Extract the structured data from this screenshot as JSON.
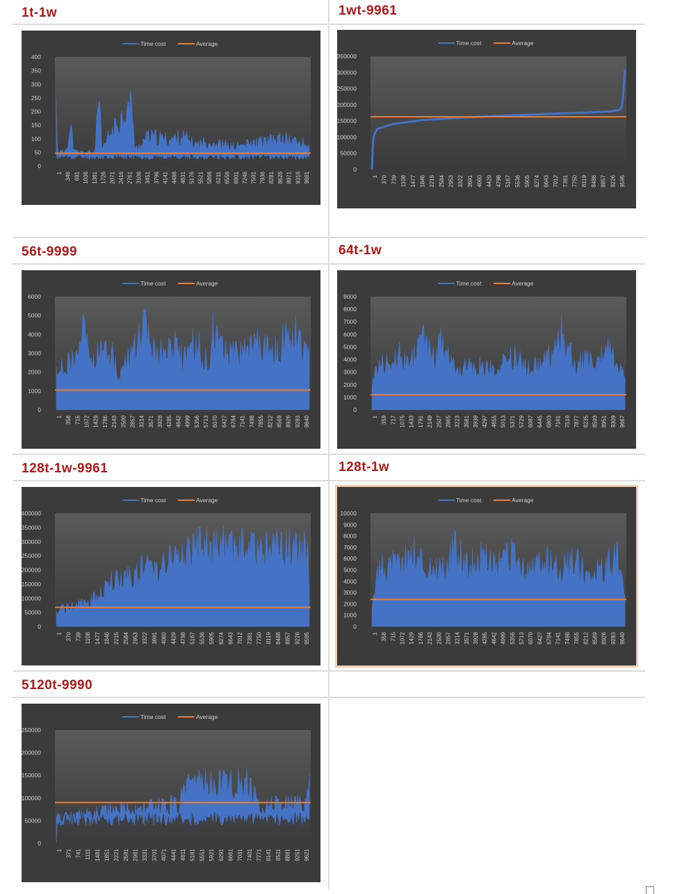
{
  "sections": [
    {
      "title": "1t-1w"
    },
    {
      "title": "1wt-9961"
    },
    {
      "title": "56t-9999"
    },
    {
      "title": "64t-1w"
    },
    {
      "title": "128t-1w-9961"
    },
    {
      "title": "128t-1w"
    },
    {
      "title": "5120t-9990"
    }
  ],
  "colors": {
    "title": "#b01818",
    "series": "#4472c4",
    "average": "#ed7d31",
    "chart_bg": "#3b3b3b",
    "plot_bg_top": "#5a5a5a",
    "plot_bg_bottom": "#3a3a3a",
    "text": "#d0d0d0"
  },
  "chart_data": [
    {
      "type": "line",
      "legend": [
        "Time cost",
        "Average"
      ],
      "legend_position": "top",
      "ylim": [
        0,
        400
      ],
      "yticks": [
        0,
        50,
        100,
        150,
        200,
        250,
        300,
        350,
        400
      ],
      "xticks": [
        "1",
        "346",
        "691",
        "1036",
        "1381",
        "1726",
        "2071",
        "2416",
        "2761",
        "3106",
        "3451",
        "3796",
        "4141",
        "4486",
        "4831",
        "5176",
        "5521",
        "5866",
        "6211",
        "6556",
        "6901",
        "7246",
        "7591",
        "7936",
        "8281",
        "8626",
        "8971",
        "9316",
        "9661"
      ],
      "average": 47,
      "series": [
        {
          "name": "Time cost",
          "profile": [
            [
              0,
              300
            ],
            [
              0.005,
              70
            ],
            [
              0.03,
              60
            ],
            [
              0.06,
              180
            ],
            [
              0.07,
              65
            ],
            [
              0.15,
              60
            ],
            [
              0.17,
              335
            ],
            [
              0.18,
              65
            ],
            [
              0.2,
              125
            ],
            [
              0.3,
              305
            ],
            [
              0.31,
              70
            ],
            [
              0.36,
              140
            ],
            [
              0.45,
              125
            ],
            [
              0.5,
              140
            ],
            [
              0.55,
              100
            ],
            [
              0.6,
              115
            ],
            [
              0.7,
              90
            ],
            [
              0.85,
              120
            ],
            [
              0.9,
              130
            ],
            [
              0.95,
              115
            ],
            [
              1,
              95
            ]
          ],
          "base": 40
        }
      ]
    },
    {
      "type": "line",
      "legend": [
        "Time cost",
        "Average"
      ],
      "legend_position": "top",
      "ylim": [
        0,
        350000
      ],
      "yticks": [
        0,
        50000,
        100000,
        150000,
        200000,
        250000,
        300000,
        350000
      ],
      "xticks": [
        "1",
        "370",
        "739",
        "1108",
        "1477",
        "1846",
        "2215",
        "2584",
        "2953",
        "3322",
        "3691",
        "4060",
        "4429",
        "4798",
        "5167",
        "5536",
        "5905",
        "6274",
        "6643",
        "7012",
        "7381",
        "7750",
        "8119",
        "8488",
        "8857",
        "9226",
        "9595"
      ],
      "average": 163000,
      "series": [
        {
          "name": "Time cost",
          "profile": [
            [
              0,
              0
            ],
            [
              0.005,
              100000
            ],
            [
              0.02,
              125000
            ],
            [
              0.08,
              140000
            ],
            [
              0.2,
              153000
            ],
            [
              0.35,
              160000
            ],
            [
              0.5,
              166000
            ],
            [
              0.7,
              172000
            ],
            [
              0.85,
              176000
            ],
            [
              0.95,
              180000
            ],
            [
              0.98,
              185000
            ],
            [
              0.99,
              200000
            ],
            [
              1,
              310000
            ]
          ],
          "base": null
        }
      ]
    },
    {
      "type": "line",
      "legend": [
        "Time cost",
        "Average"
      ],
      "legend_position": "top",
      "ylim": [
        0,
        6000
      ],
      "yticks": [
        0,
        1000,
        2000,
        3000,
        4000,
        5000,
        6000
      ],
      "xticks": [
        "1",
        "358",
        "715",
        "1072",
        "1429",
        "1786",
        "2143",
        "2500",
        "2857",
        "3214",
        "3571",
        "3928",
        "4285",
        "4642",
        "4999",
        "5356",
        "5713",
        "6070",
        "6427",
        "6784",
        "7141",
        "7498",
        "7855",
        "8212",
        "8569",
        "8926",
        "9283",
        "9640"
      ],
      "average": 1050,
      "series": [
        {
          "name": "Time cost",
          "profile": [
            [
              0,
              2800
            ],
            [
              0.08,
              3500
            ],
            [
              0.1,
              5500
            ],
            [
              0.14,
              3200
            ],
            [
              0.2,
              4500
            ],
            [
              0.25,
              2500
            ],
            [
              0.3,
              3700
            ],
            [
              0.35,
              5500
            ],
            [
              0.4,
              3600
            ],
            [
              0.47,
              4700
            ],
            [
              0.5,
              3200
            ],
            [
              0.55,
              4700
            ],
            [
              0.6,
              3000
            ],
            [
              0.62,
              5300
            ],
            [
              0.68,
              3600
            ],
            [
              0.75,
              4000
            ],
            [
              0.8,
              4700
            ],
            [
              0.85,
              3600
            ],
            [
              0.9,
              4700
            ],
            [
              0.95,
              5600
            ],
            [
              1,
              3600
            ]
          ],
          "base": 0
        }
      ]
    },
    {
      "type": "line",
      "legend": [
        "Time cost",
        "Average"
      ],
      "legend_position": "top",
      "ylim": [
        0,
        9000
      ],
      "yticks": [
        0,
        1000,
        2000,
        3000,
        4000,
        5000,
        6000,
        7000,
        8000,
        9000
      ],
      "xticks": [
        "1",
        "359",
        "717",
        "1075",
        "1433",
        "1791",
        "2149",
        "2507",
        "2865",
        "3223",
        "3581",
        "3939",
        "4297",
        "4655",
        "5013",
        "5371",
        "5729",
        "6087",
        "6445",
        "6803",
        "7161",
        "7519",
        "7877",
        "8235",
        "8593",
        "8951",
        "9309",
        "9667"
      ],
      "average": 1200,
      "series": [
        {
          "name": "Time cost",
          "profile": [
            [
              0,
              3000
            ],
            [
              0.06,
              5000
            ],
            [
              0.1,
              6000
            ],
            [
              0.15,
              4500
            ],
            [
              0.2,
              7200
            ],
            [
              0.25,
              5000
            ],
            [
              0.27,
              7200
            ],
            [
              0.33,
              4000
            ],
            [
              0.4,
              4200
            ],
            [
              0.5,
              4500
            ],
            [
              0.55,
              5600
            ],
            [
              0.6,
              4500
            ],
            [
              0.65,
              4500
            ],
            [
              0.72,
              5500
            ],
            [
              0.75,
              8000
            ],
            [
              0.8,
              4500
            ],
            [
              0.85,
              5000
            ],
            [
              0.9,
              5000
            ],
            [
              0.95,
              6200
            ],
            [
              1,
              3500
            ]
          ],
          "base": 0
        }
      ]
    },
    {
      "type": "line",
      "legend": [
        "Time cost",
        "Average"
      ],
      "legend_position": "top",
      "ylim": [
        0,
        400000
      ],
      "yticks": [
        0,
        50000,
        100000,
        150000,
        200000,
        250000,
        300000,
        350000,
        400000
      ],
      "xticks": [
        "1",
        "370",
        "739",
        "1108",
        "1477",
        "1846",
        "2215",
        "2584",
        "2953",
        "3322",
        "3691",
        "4060",
        "4429",
        "4798",
        "5167",
        "5536",
        "5905",
        "6274",
        "6643",
        "7012",
        "7381",
        "7750",
        "8119",
        "8488",
        "8857",
        "9226",
        "9595"
      ],
      "average": 68000,
      "series": [
        {
          "name": "Time cost",
          "profile": [
            [
              0,
              70000
            ],
            [
              0.05,
              90000
            ],
            [
              0.1,
              100000
            ],
            [
              0.15,
              125000
            ],
            [
              0.2,
              190000
            ],
            [
              0.25,
              215000
            ],
            [
              0.3,
              245000
            ],
            [
              0.35,
              270000
            ],
            [
              0.4,
              290000
            ],
            [
              0.45,
              310000
            ],
            [
              0.5,
              335000
            ],
            [
              0.55,
              355000
            ],
            [
              0.6,
              362000
            ],
            [
              0.8,
              360000
            ],
            [
              0.99,
              362000
            ],
            [
              1,
              180000
            ]
          ],
          "base": 0
        }
      ]
    },
    {
      "type": "line",
      "legend": [
        "Time cost",
        "Average"
      ],
      "legend_position": "top",
      "ylim": [
        0,
        10000
      ],
      "yticks": [
        0,
        1000,
        2000,
        3000,
        4000,
        5000,
        6000,
        7000,
        8000,
        9000,
        10000
      ],
      "xticks": [
        "1",
        "358",
        "715",
        "1072",
        "1429",
        "1786",
        "2143",
        "2500",
        "2857",
        "3214",
        "3571",
        "3928",
        "4285",
        "4642",
        "4999",
        "5356",
        "5713",
        "6070",
        "6427",
        "6784",
        "7141",
        "7498",
        "7855",
        "8212",
        "8569",
        "8926",
        "9283",
        "9640"
      ],
      "average": 2400,
      "series": [
        {
          "name": "Time cost",
          "profile": [
            [
              0,
              2500
            ],
            [
              0.02,
              6500
            ],
            [
              0.1,
              7000
            ],
            [
              0.17,
              8500
            ],
            [
              0.22,
              6500
            ],
            [
              0.3,
              6800
            ],
            [
              0.33,
              9200
            ],
            [
              0.38,
              7000
            ],
            [
              0.45,
              7800
            ],
            [
              0.5,
              6700
            ],
            [
              0.55,
              8000
            ],
            [
              0.6,
              6200
            ],
            [
              0.65,
              6800
            ],
            [
              0.7,
              7300
            ],
            [
              0.78,
              6800
            ],
            [
              0.8,
              8000
            ],
            [
              0.85,
              6200
            ],
            [
              0.9,
              6000
            ],
            [
              0.97,
              7900
            ],
            [
              1,
              3000
            ]
          ],
          "base": 0
        }
      ]
    },
    {
      "type": "line",
      "legend": [
        "Time cost",
        "Average"
      ],
      "legend_position": "top",
      "ylim": [
        0,
        250000
      ],
      "yticks": [
        0,
        50000,
        100000,
        150000,
        200000,
        250000
      ],
      "xticks": [
        "1",
        "371",
        "741",
        "1111",
        "1481",
        "1851",
        "2221",
        "2591",
        "2961",
        "3331",
        "3701",
        "4071",
        "4441",
        "4811",
        "5181",
        "5551",
        "5921",
        "6291",
        "6661",
        "7031",
        "7401",
        "7771",
        "8141",
        "8511",
        "8881",
        "9251",
        "9621"
      ],
      "average": 90000,
      "series": [
        {
          "name": "Time cost",
          "profile": [
            [
              0,
              0
            ],
            [
              0.005,
              60000
            ],
            [
              0.03,
              70000
            ],
            [
              0.1,
              80000
            ],
            [
              0.2,
              90000
            ],
            [
              0.35,
              100000
            ],
            [
              0.45,
              108000
            ],
            [
              0.48,
              115000
            ],
            [
              0.5,
              140000
            ],
            [
              0.52,
              155000
            ],
            [
              0.55,
              165000
            ],
            [
              0.6,
              172000
            ],
            [
              0.7,
              178000
            ],
            [
              0.75,
              178000
            ],
            [
              0.8,
              110000
            ],
            [
              0.9,
              110000
            ],
            [
              0.99,
              112000
            ],
            [
              1,
              210000
            ]
          ],
          "base": 65000
        }
      ]
    }
  ]
}
